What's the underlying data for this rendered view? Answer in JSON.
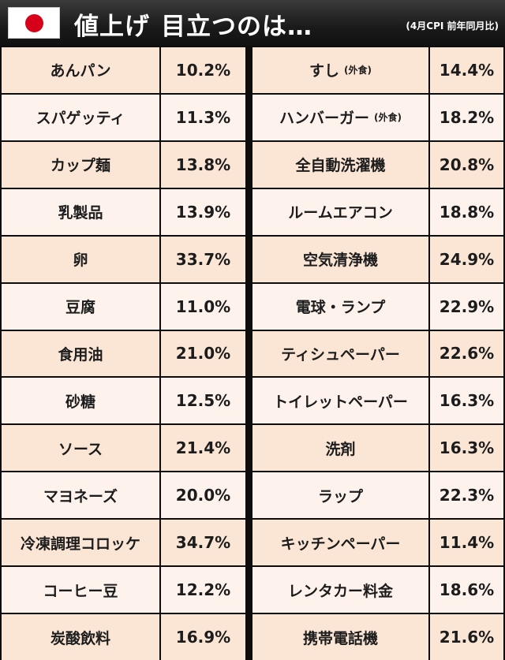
{
  "header": {
    "flag_icon": "japan-flag-icon",
    "title_part1": "値上げ",
    "title_part2": "目立つのは…",
    "note": "(4月CPI 前年同月比)"
  },
  "colors": {
    "row_odd": "#fbe6d6",
    "row_even": "#fdf3ec",
    "header_bg": "#1a1a1a",
    "flag_red": "#d7001a"
  },
  "left_items": [
    {
      "name": "あんパン",
      "note": "",
      "value": "10.2%"
    },
    {
      "name": "スパゲッティ",
      "note": "",
      "value": "11.3%"
    },
    {
      "name": "カップ麺",
      "note": "",
      "value": "13.8%"
    },
    {
      "name": "乳製品",
      "note": "",
      "value": "13.9%"
    },
    {
      "name": "卵",
      "note": "",
      "value": "33.7%"
    },
    {
      "name": "豆腐",
      "note": "",
      "value": "11.0%"
    },
    {
      "name": "食用油",
      "note": "",
      "value": "21.0%"
    },
    {
      "name": "砂糖",
      "note": "",
      "value": "12.5%"
    },
    {
      "name": "ソース",
      "note": "",
      "value": "21.4%"
    },
    {
      "name": "マヨネーズ",
      "note": "",
      "value": "20.0%"
    },
    {
      "name": "冷凍調理コロッケ",
      "note": "",
      "value": "34.7%"
    },
    {
      "name": "コーヒー豆",
      "note": "",
      "value": "12.2%"
    },
    {
      "name": "炭酸飲料",
      "note": "",
      "value": "16.9%"
    }
  ],
  "right_items": [
    {
      "name": "すし",
      "note": "(外食)",
      "value": "14.4%"
    },
    {
      "name": "ハンバーガー",
      "note": "(外食)",
      "value": "18.2%"
    },
    {
      "name": "全自動洗濯機",
      "note": "",
      "value": "20.8%"
    },
    {
      "name": "ルームエアコン",
      "note": "",
      "value": "18.8%"
    },
    {
      "name": "空気清浄機",
      "note": "",
      "value": "24.9%"
    },
    {
      "name": "電球・ランプ",
      "note": "",
      "value": "22.9%"
    },
    {
      "name": "ティシュペーパー",
      "note": "",
      "value": "22.6%"
    },
    {
      "name": "トイレットペーパー",
      "note": "",
      "value": "16.3%"
    },
    {
      "name": "洗剤",
      "note": "",
      "value": "16.3%"
    },
    {
      "name": "ラップ",
      "note": "",
      "value": "22.3%"
    },
    {
      "name": "キッチンペーパー",
      "note": "",
      "value": "11.4%"
    },
    {
      "name": "レンタカー料金",
      "note": "",
      "value": "18.6%"
    },
    {
      "name": "携帯電話機",
      "note": "",
      "value": "21.6%"
    }
  ]
}
